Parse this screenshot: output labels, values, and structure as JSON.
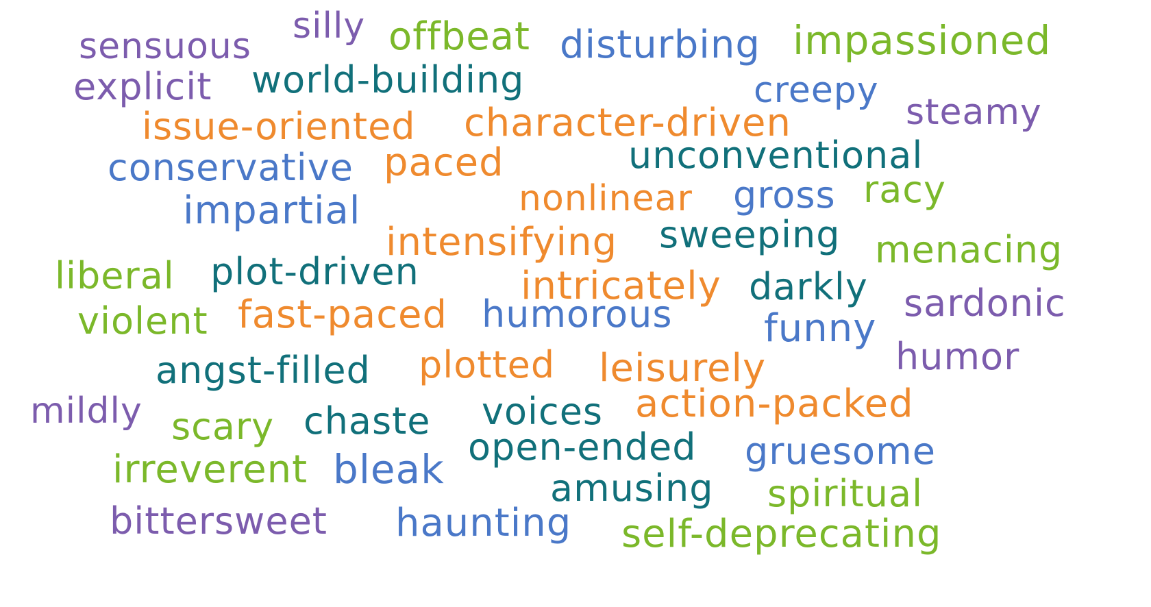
{
  "colors": {
    "purple": "#7c5cad",
    "green": "#7bb82a",
    "blue": "#4a78c8",
    "teal": "#11707a",
    "orange": "#ef8a2e"
  },
  "words": {
    "sensuous": {
      "text": "sensuous",
      "color": "purple"
    },
    "silly": {
      "text": "silly",
      "color": "purple"
    },
    "offbeat": {
      "text": "offbeat",
      "color": "green"
    },
    "disturbing": {
      "text": "disturbing",
      "color": "blue"
    },
    "impassioned": {
      "text": "impassioned",
      "color": "green"
    },
    "explicit": {
      "text": "explicit",
      "color": "purple"
    },
    "world_building": {
      "text": "world-building",
      "color": "teal"
    },
    "creepy": {
      "text": "creepy",
      "color": "blue"
    },
    "steamy": {
      "text": "steamy",
      "color": "purple"
    },
    "issue_oriented": {
      "text": "issue-oriented",
      "color": "orange"
    },
    "character_driven": {
      "text": "character-driven",
      "color": "orange"
    },
    "unconventional": {
      "text": "unconventional",
      "color": "teal"
    },
    "conservative": {
      "text": "conservative",
      "color": "blue"
    },
    "paced": {
      "text": "paced",
      "color": "orange"
    },
    "nonlinear": {
      "text": "nonlinear",
      "color": "orange"
    },
    "gross": {
      "text": "gross",
      "color": "blue"
    },
    "racy": {
      "text": "racy",
      "color": "green"
    },
    "impartial": {
      "text": "impartial",
      "color": "blue"
    },
    "intensifying": {
      "text": "intensifying",
      "color": "orange"
    },
    "sweeping": {
      "text": "sweeping",
      "color": "teal"
    },
    "menacing": {
      "text": "menacing",
      "color": "green"
    },
    "liberal": {
      "text": "liberal",
      "color": "green"
    },
    "plot_driven": {
      "text": "plot-driven",
      "color": "teal"
    },
    "intricately": {
      "text": "intricately",
      "color": "orange"
    },
    "darkly": {
      "text": "darkly",
      "color": "teal"
    },
    "sardonic": {
      "text": "sardonic",
      "color": "purple"
    },
    "violent": {
      "text": "violent",
      "color": "green"
    },
    "fast_paced": {
      "text": "fast-paced",
      "color": "orange"
    },
    "humorous": {
      "text": "humorous",
      "color": "blue"
    },
    "funny": {
      "text": "funny",
      "color": "blue"
    },
    "humor": {
      "text": "humor",
      "color": "purple"
    },
    "angst_filled": {
      "text": "angst-filled",
      "color": "teal"
    },
    "plotted": {
      "text": "plotted",
      "color": "orange"
    },
    "leisurely": {
      "text": "leisurely",
      "color": "orange"
    },
    "mildly": {
      "text": "mildly",
      "color": "purple"
    },
    "scary": {
      "text": "scary",
      "color": "green"
    },
    "chaste": {
      "text": "chaste",
      "color": "teal"
    },
    "voices": {
      "text": "voices",
      "color": "teal"
    },
    "action_packed": {
      "text": "action-packed",
      "color": "orange"
    },
    "open_ended": {
      "text": "open-ended",
      "color": "teal"
    },
    "gruesome": {
      "text": "gruesome",
      "color": "blue"
    },
    "irreverent": {
      "text": "irreverent",
      "color": "green"
    },
    "bleak": {
      "text": "bleak",
      "color": "blue"
    },
    "amusing": {
      "text": "amusing",
      "color": "teal"
    },
    "spiritual": {
      "text": "spiritual",
      "color": "green"
    },
    "bittersweet": {
      "text": "bittersweet",
      "color": "purple"
    },
    "haunting": {
      "text": "haunting",
      "color": "blue"
    },
    "self_deprecating": {
      "text": "self-deprecating",
      "color": "green"
    }
  }
}
